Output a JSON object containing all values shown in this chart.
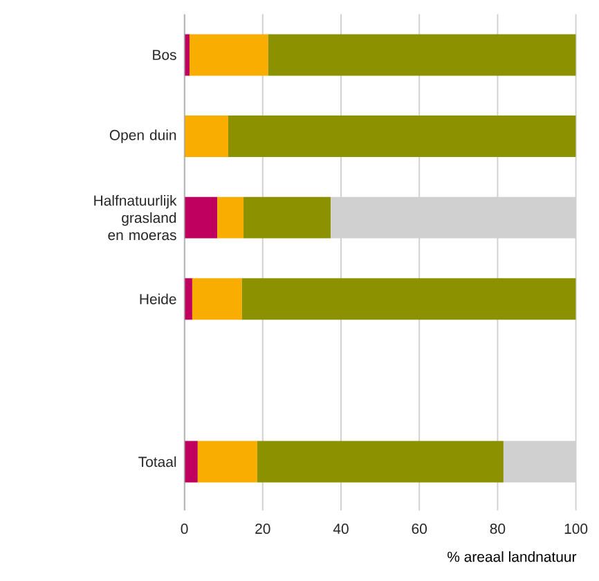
{
  "chart_data": {
    "type": "bar",
    "orientation": "horizontal",
    "stacked": true,
    "categories": [
      "Bos",
      "Open duin",
      "Halfnatuurlijk grasland en moeras",
      "Heide",
      null,
      "Totaal"
    ],
    "series": [
      {
        "color": "#c0005f",
        "values": [
          1.3,
          null,
          8.4,
          2.0,
          null,
          3.4
        ]
      },
      {
        "color": "#f9ad00",
        "values": [
          20.1,
          11.2,
          6.7,
          12.7,
          null,
          15.2
        ]
      },
      {
        "color": "#8c9100",
        "values": [
          78.6,
          88.8,
          22.3,
          85.3,
          null,
          62.9
        ]
      },
      {
        "color": "#d0d0d0",
        "values": [
          null,
          null,
          62.6,
          null,
          null,
          18.5
        ]
      }
    ],
    "xlabel": "% areaal landnatuur",
    "xlim": [
      0,
      100
    ],
    "xticks": [
      0,
      20,
      40,
      60,
      80,
      100
    ],
    "grid": "x"
  }
}
